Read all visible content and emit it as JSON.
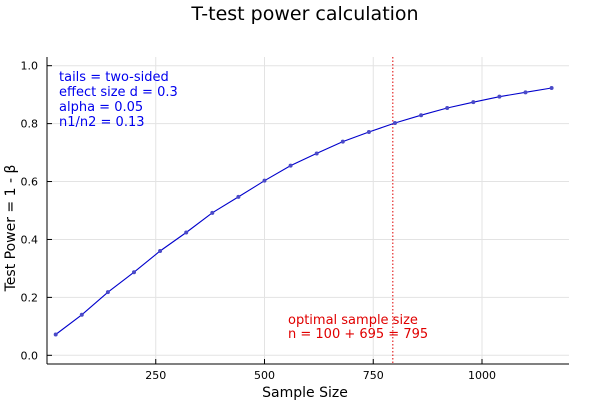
{
  "chart_data": {
    "type": "line",
    "title": "T-test power calculation",
    "xlabel": "Sample Size",
    "ylabel": "Test Power = 1 -   β",
    "xlim": [
      0,
      1200
    ],
    "ylim": [
      -0.03,
      1.03
    ],
    "xticks": [
      250,
      500,
      750,
      1000
    ],
    "yticks": [
      0.0,
      0.2,
      0.4,
      0.6,
      0.8,
      1.0
    ],
    "xtick_labels": [
      "250",
      "500",
      "750",
      "1000"
    ],
    "ytick_labels": [
      "0.0",
      "0.2",
      "0.4",
      "0.6",
      "0.8",
      "1.0"
    ],
    "grid": true,
    "line_color": "#0000cc",
    "marker_color": "#4a4ac8",
    "series": [
      {
        "x": [
          20,
          80,
          140,
          200,
          260,
          320,
          380,
          440,
          500,
          560,
          620,
          680,
          740,
          800,
          860,
          920,
          980,
          1040,
          1100,
          1160
        ],
        "y": [
          0.072,
          0.14,
          0.218,
          0.287,
          0.36,
          0.424,
          0.492,
          0.547,
          0.603,
          0.655,
          0.697,
          0.738,
          0.771,
          0.802,
          0.829,
          0.854,
          0.874,
          0.893,
          0.908,
          0.923
        ]
      }
    ],
    "vline": {
      "x": 795,
      "color": "#e00000",
      "style": "dotted"
    },
    "info_lines": [
      "tails = two-sided",
      "effect size d = 0.3",
      "alpha = 0.05",
      "n1/n2 = 0.13"
    ],
    "info_color": "#0000ee",
    "annotation_lines": [
      "optimal sample size",
      "n = 100 + 695 = 795"
    ],
    "annotation_color": "#e00000",
    "info_position": "top-left",
    "annotation_position": "bottom-center"
  }
}
